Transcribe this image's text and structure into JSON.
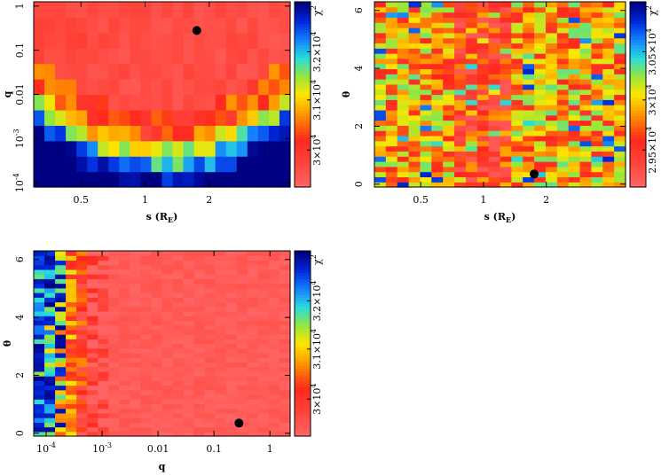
{
  "chart_data": [
    {
      "type": "heatmap",
      "xlabel": "s (R_E)",
      "ylabel": "q",
      "x_scale": "log",
      "y_scale": "log",
      "xlim": [
        0.3,
        4.8
      ],
      "ylim": [
        8e-05,
        1.25
      ],
      "x_ticks": [
        {
          "v": 0.5,
          "label": "0.5"
        },
        {
          "v": 1,
          "label": "1"
        },
        {
          "v": 2,
          "label": "2"
        }
      ],
      "y_ticks": [
        {
          "v": 0.0001,
          "label": "10^-4"
        },
        {
          "v": 0.001,
          "label": "10^-3"
        },
        {
          "v": 0.01,
          "label": "0.01"
        },
        {
          "v": 0.1,
          "label": "0.1"
        },
        {
          "v": 1,
          "label": "1"
        }
      ],
      "colorbar": {
        "title": "χ²",
        "tick_labels": [
          "3×10^4",
          "3.1×10^4",
          "3.2×10^4"
        ]
      },
      "marker": {
        "x": 1.75,
        "y": 0.28
      }
    },
    {
      "type": "heatmap",
      "xlabel": "s (R_E)",
      "ylabel": "θ",
      "x_scale": "log",
      "y_scale": "linear",
      "xlim": [
        0.3,
        4.8
      ],
      "ylim": [
        -0.1,
        6.3
      ],
      "x_ticks": [
        {
          "v": 0.5,
          "label": "0.5"
        },
        {
          "v": 1,
          "label": "1"
        },
        {
          "v": 2,
          "label": "2"
        }
      ],
      "y_ticks": [
        {
          "v": 0,
          "label": "0"
        },
        {
          "v": 2,
          "label": "2"
        },
        {
          "v": 4,
          "label": "4"
        },
        {
          "v": 6,
          "label": "6"
        }
      ],
      "colorbar": {
        "title": "χ²",
        "tick_labels": [
          "2.95×10^4",
          "3×10^4",
          "3.05×10^4"
        ]
      },
      "marker": {
        "x": 1.75,
        "y": 0.35
      }
    },
    {
      "type": "heatmap",
      "xlabel": "q",
      "ylabel": "θ",
      "x_scale": "log",
      "y_scale": "linear",
      "xlim": [
        6e-05,
        2.3
      ],
      "ylim": [
        -0.1,
        6.3
      ],
      "x_ticks": [
        {
          "v": 0.0001,
          "label": "10^-4"
        },
        {
          "v": 0.001,
          "label": "10^-3"
        },
        {
          "v": 0.01,
          "label": "0.01"
        },
        {
          "v": 0.1,
          "label": "0.1"
        },
        {
          "v": 1,
          "label": "1"
        }
      ],
      "y_ticks": [
        {
          "v": 0,
          "label": "0"
        },
        {
          "v": 2,
          "label": "2"
        },
        {
          "v": 4,
          "label": "4"
        },
        {
          "v": 6,
          "label": "6"
        }
      ],
      "colorbar": {
        "title": "χ²",
        "tick_labels": [
          "3×10^4",
          "3.1×10^4",
          "3.2×10^4"
        ]
      },
      "marker": {
        "x": 0.28,
        "y": 0.35
      }
    }
  ]
}
